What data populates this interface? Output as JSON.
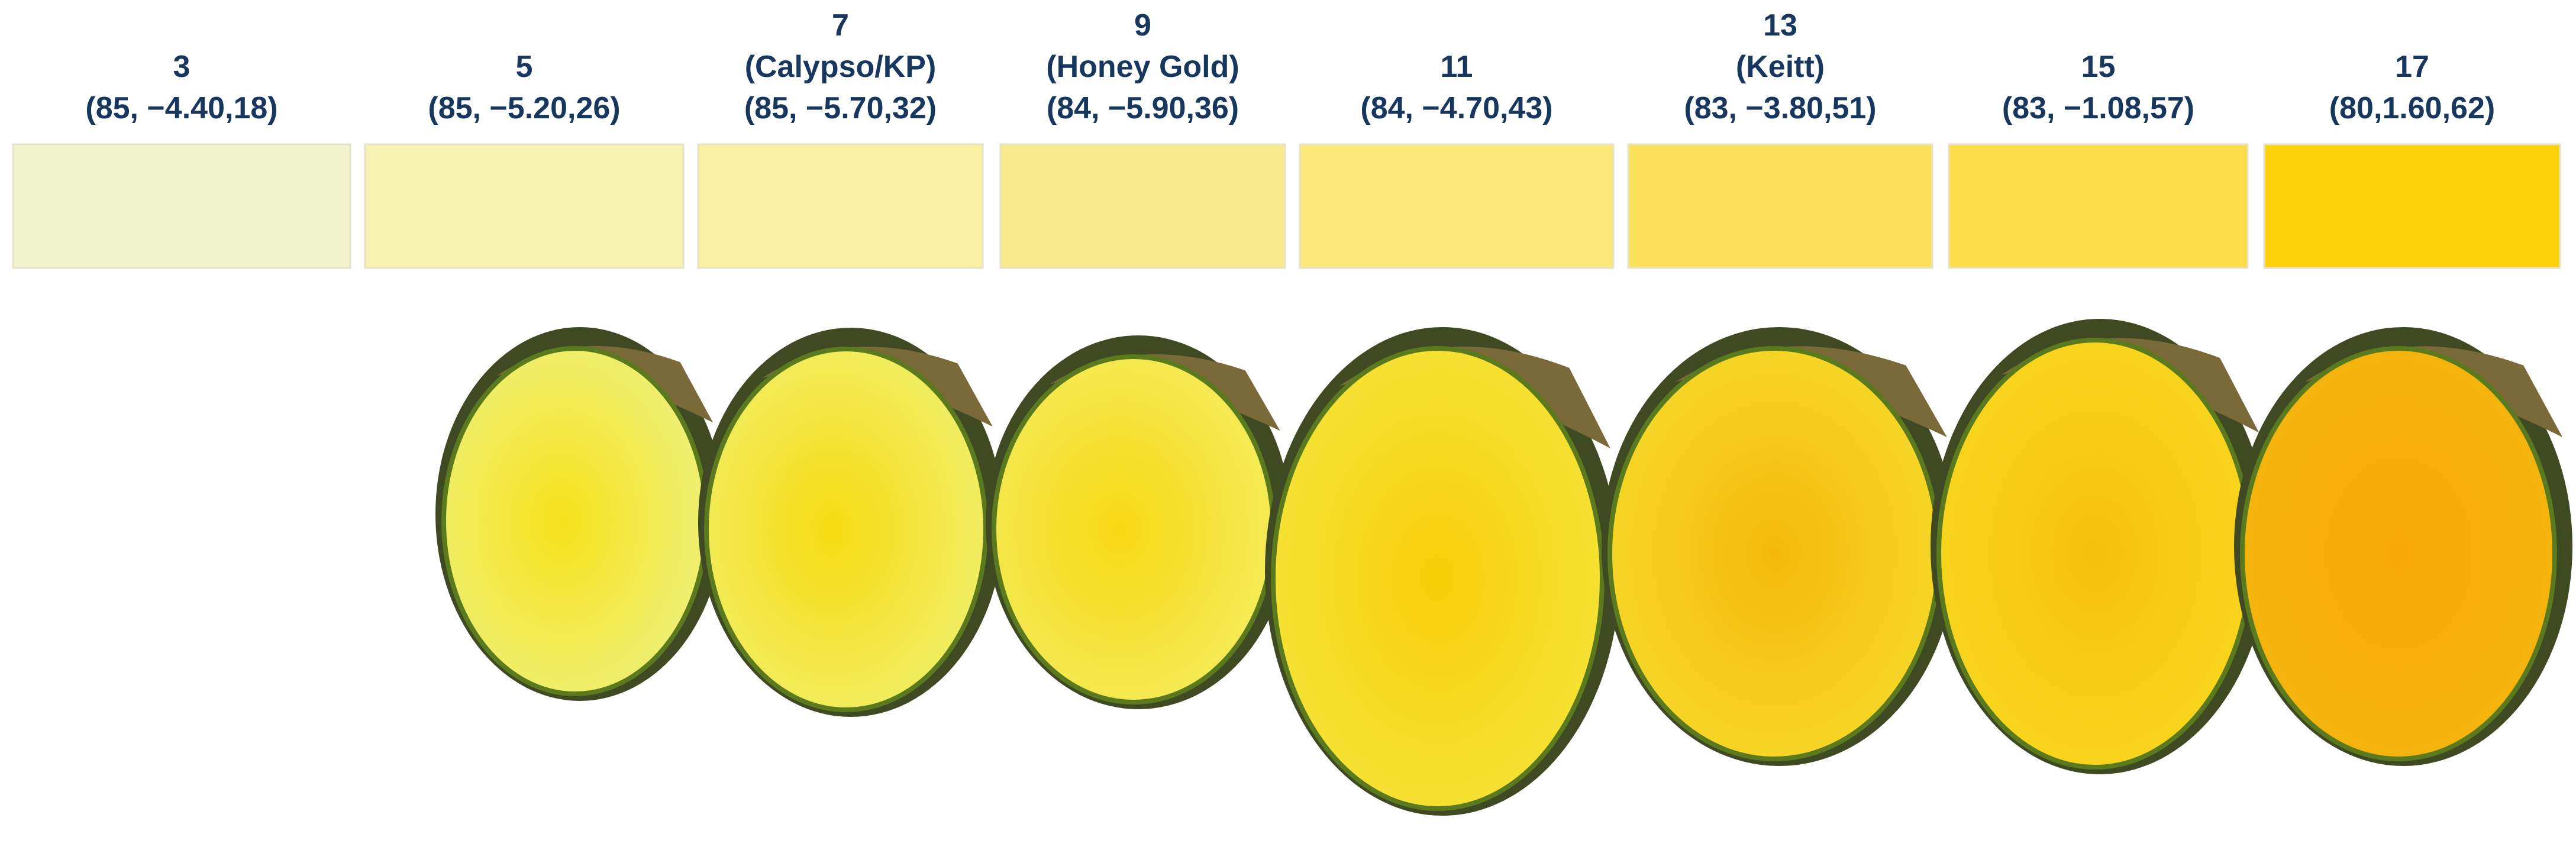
{
  "swatches": [
    {
      "lines": [
        "3",
        "(85, −4.40,18)"
      ],
      "color": "#f1f3cf"
    },
    {
      "lines": [
        "5",
        "(85, −5.20,26)"
      ],
      "color": "#f5f2b2"
    },
    {
      "lines": [
        "7",
        "(Calypso/KP)",
        "(85, −5.70,32)"
      ],
      "color": "#faf0a2"
    },
    {
      "lines": [
        "9",
        "(Honey Gold)",
        "(84, −5.90,36)"
      ],
      "color": "#f8ea8c"
    },
    {
      "lines": [
        "11",
        "(84, −4.70,43)"
      ],
      "color": "#fbe87a"
    },
    {
      "lines": [
        "13",
        "(Keitt)",
        "(83, −3.80,51)"
      ],
      "color": "#fce05a"
    },
    {
      "lines": [
        "15",
        "(83, −1.08,57)"
      ],
      "color": "#fcdc48"
    },
    {
      "lines": [
        "17",
        "(80,1.60,62)"
      ],
      "color": "#fdd10a"
    }
  ]
}
